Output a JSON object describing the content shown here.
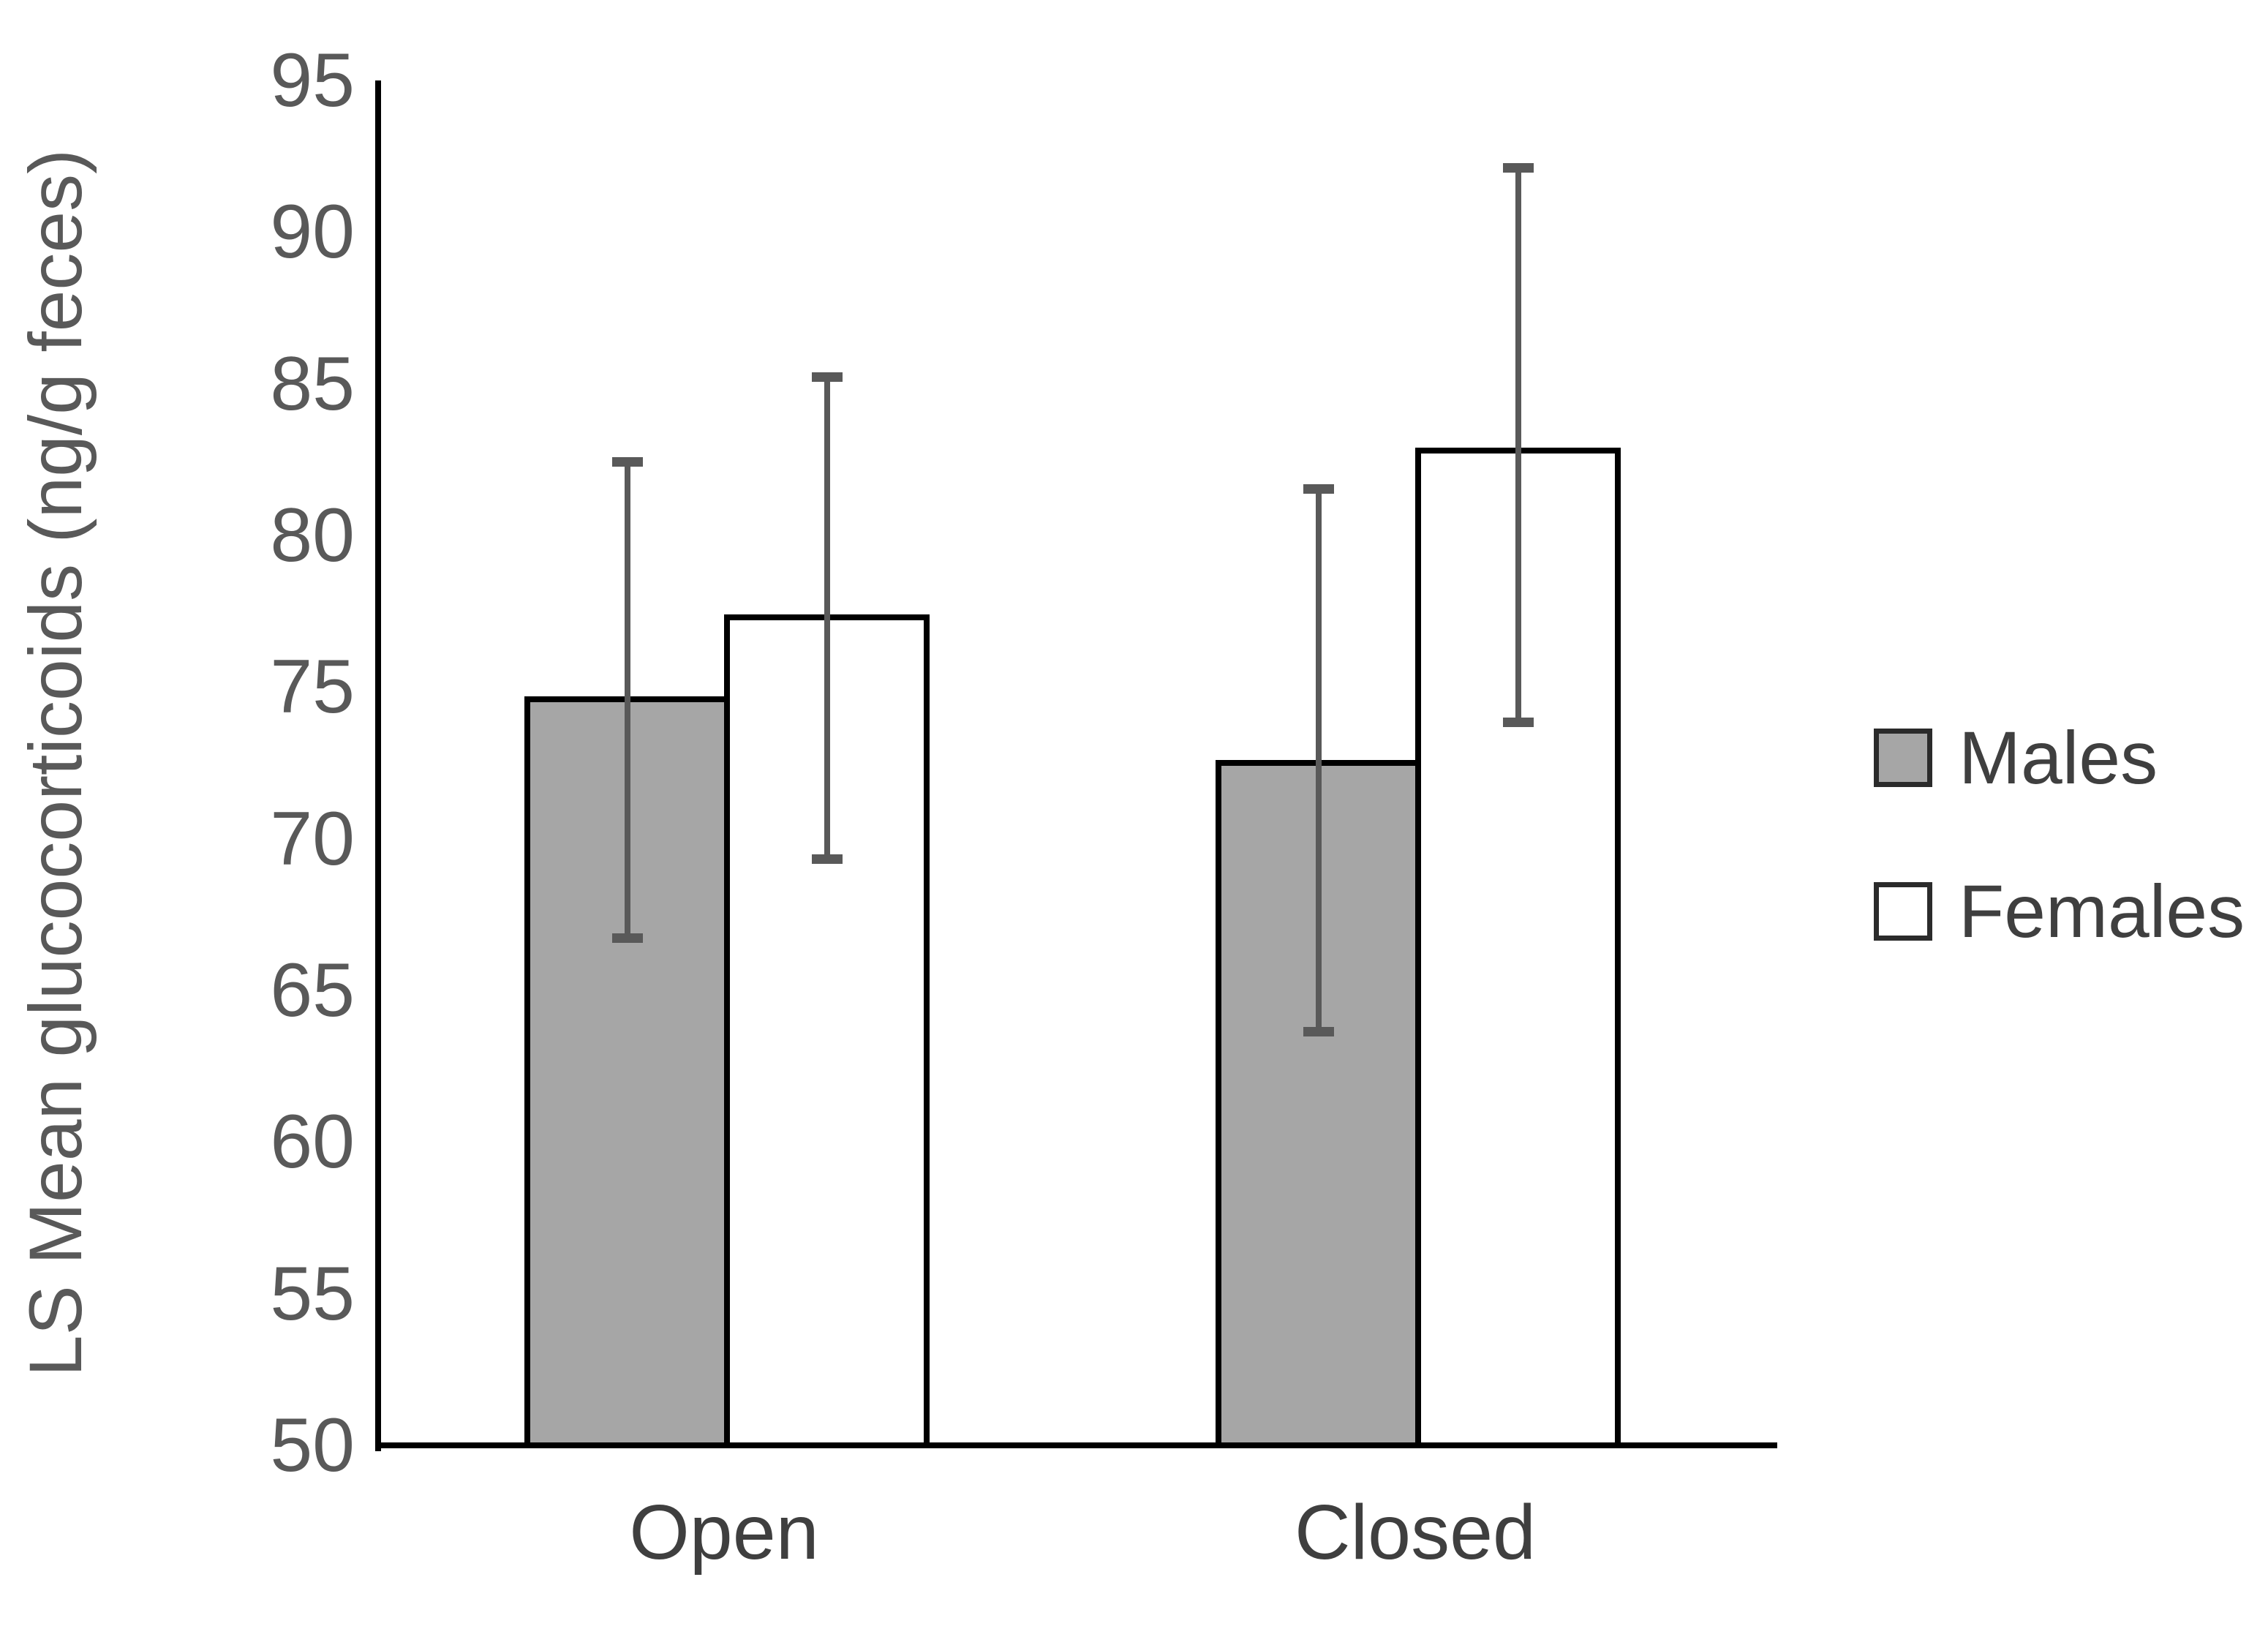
{
  "figure": {
    "background": "#ffffff"
  },
  "chart_data": {
    "type": "bar",
    "title": "",
    "categories": [
      "Open",
      "Closed"
    ],
    "series": [
      {
        "name": "Males",
        "values": [
          74.7,
          72.6
        ],
        "error_low": [
          66.8,
          63.7
        ],
        "error_high": [
          82.5,
          81.6
        ],
        "fill": "#a6a6a6",
        "border": "#000000"
      },
      {
        "name": "Females",
        "values": [
          77.4,
          82.9
        ],
        "error_low": [
          69.4,
          73.9
        ],
        "error_high": [
          85.3,
          92.2
        ],
        "fill": "#ffffff",
        "border": "#000000"
      }
    ],
    "xlabel": "",
    "ylabel": "LS Mean glucocorticoids (ng/g feces)",
    "ylim": [
      50,
      95
    ],
    "yticks": [
      50,
      55,
      60,
      65,
      70,
      75,
      80,
      85,
      90,
      95
    ],
    "grid": false,
    "legend_position": "right",
    "bar_outline_color": "#000000",
    "error_bar_color": "#595959",
    "axis_color": "#000000",
    "tick_label_color": "#595959",
    "category_label_color": "#3f3f3f",
    "legend_text_color": "#3f3f3f",
    "ylabel_color": "#595959"
  }
}
